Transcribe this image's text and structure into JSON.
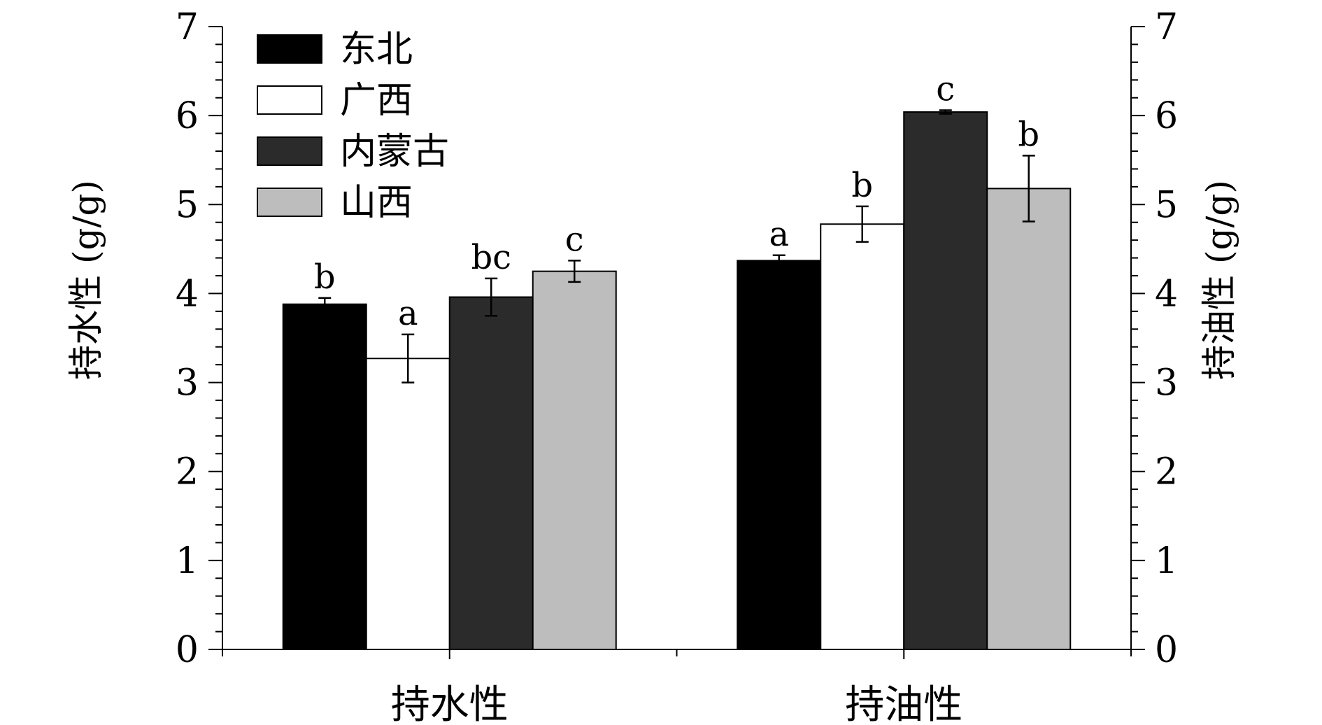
{
  "chart_data": {
    "type": "bar",
    "categories": [
      "持水性",
      "持油性"
    ],
    "series": [
      {
        "name": "东北",
        "color": "#000000",
        "values": [
          3.88,
          4.37
        ],
        "errors": [
          0.07,
          0.06
        ],
        "letters": [
          "b",
          "a"
        ]
      },
      {
        "name": "广西",
        "color": "#ffffff",
        "values": [
          3.27,
          4.78
        ],
        "errors": [
          0.27,
          0.2
        ],
        "letters": [
          "a",
          "b"
        ]
      },
      {
        "name": "内蒙古",
        "color": "#2b2b2b",
        "values": [
          3.96,
          6.04
        ],
        "errors": [
          0.21,
          0.02
        ],
        "letters": [
          "bc",
          "c"
        ]
      },
      {
        "name": "山西",
        "color": "#bdbdbd",
        "values": [
          4.25,
          5.18
        ],
        "errors": [
          0.12,
          0.37
        ],
        "letters": [
          "c",
          "b"
        ]
      }
    ],
    "ylabel_left": "持水性 (g/g)",
    "ylabel_right": "持油性 (g/g)",
    "xlabel": "",
    "ylim": [
      0,
      7
    ],
    "yticks": [
      0,
      1,
      2,
      3,
      4,
      5,
      6,
      7
    ],
    "grid": false,
    "legend_position": "top-left"
  }
}
